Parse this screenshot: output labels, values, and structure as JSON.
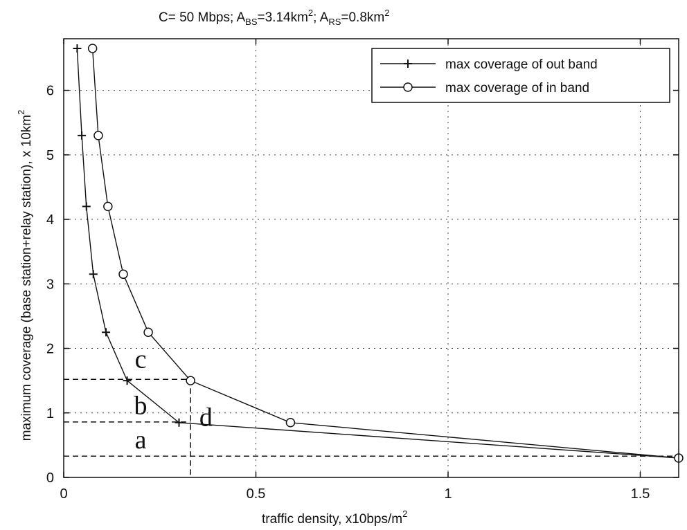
{
  "chart_data": {
    "type": "line",
    "title": "C=  50 Mbps;  A",
    "title_parts": {
      "main": "C=  50 Mbps;  A",
      "bs_sub": "BS",
      "bs_val": "=3.14km",
      "sep": ";  A",
      "rs_sub": "RS",
      "rs_val": "=0.8km",
      "sup": "2"
    },
    "xlabel": "traffic density, x10bps/m",
    "xlabel_sup": "2",
    "ylabel": "maximum coverage (base station+relay station), x 10km",
    "ylabel_sup": "2",
    "xlim": [
      0,
      1.6
    ],
    "ylim": [
      0,
      6.8
    ],
    "xticks": [
      0,
      0.5,
      1,
      1.5
    ],
    "xtick_labels": [
      "0",
      "0.5",
      "1",
      "1.5"
    ],
    "yticks": [
      0,
      1,
      2,
      3,
      4,
      5,
      6
    ],
    "ytick_labels": [
      "0",
      "1",
      "2",
      "3",
      "4",
      "5",
      "6"
    ],
    "grid": true,
    "legend_position": "top-right",
    "series": [
      {
        "name": "max coverage of out band",
        "marker": "plus",
        "color": "#111111",
        "x": [
          0.035,
          0.047,
          0.059,
          0.077,
          0.11,
          0.165,
          0.3,
          1.6
        ],
        "y": [
          6.65,
          5.3,
          4.2,
          3.15,
          2.25,
          1.5,
          0.85,
          0.3
        ]
      },
      {
        "name": "max coverage of in band",
        "marker": "circle",
        "color": "#111111",
        "x": [
          0.075,
          0.09,
          0.115,
          0.155,
          0.22,
          0.33,
          0.59,
          1.6
        ],
        "y": [
          6.65,
          5.3,
          4.2,
          3.15,
          2.25,
          1.5,
          0.85,
          0.3
        ]
      }
    ],
    "reference_lines": {
      "horizontal": [
        1.52,
        0.86,
        0.33
      ],
      "vertical": [
        0.33
      ]
    },
    "annotations": [
      {
        "text": "c",
        "x": 0.2,
        "y": 1.7
      },
      {
        "text": "b",
        "x": 0.2,
        "y": 0.98
      },
      {
        "text": "d",
        "x": 0.37,
        "y": 0.8
      },
      {
        "text": "a",
        "x": 0.2,
        "y": 0.45
      }
    ]
  },
  "colors": {
    "axis": "#111111",
    "grid": "#444444",
    "background": "#ffffff"
  }
}
